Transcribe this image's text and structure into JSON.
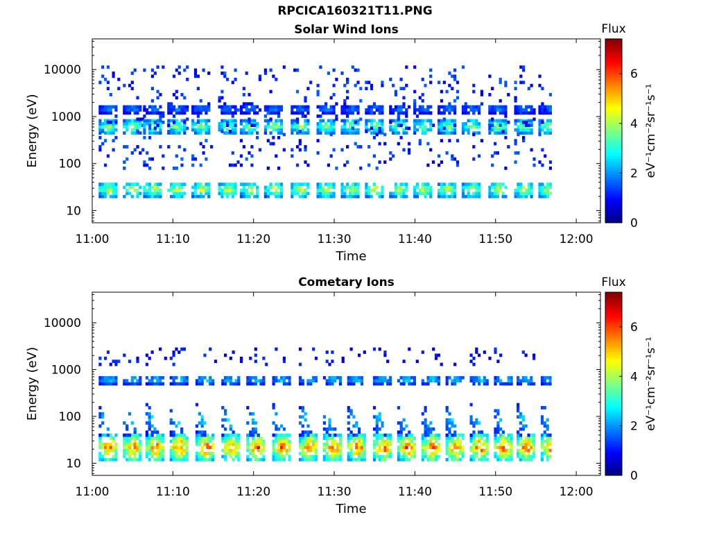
{
  "figure_title": "RPCICA160321T11.PNG",
  "chart_data": [
    {
      "type": "heatmap",
      "title": "Solar Wind Ions",
      "xlabel": "Time",
      "ylabel": "Energy (eV)",
      "x_ticks": [
        "11:00",
        "11:10",
        "11:20",
        "11:30",
        "11:40",
        "11:50",
        "12:00"
      ],
      "x_range_minutes": [
        0,
        63
      ],
      "y_scale": "log",
      "y_ticks": [
        "10",
        "100",
        "1000",
        "10000"
      ],
      "y_range": [
        5.5,
        45000
      ],
      "grid": false,
      "colorbar": {
        "label": "Flux",
        "units": "eV⁻¹cm⁻²sr⁻¹s⁻¹",
        "ticks": [
          "0",
          "2",
          "4",
          "6"
        ],
        "range": [
          0,
          7.4
        ],
        "colormap": "jet"
      },
      "pulse_times_minutes": [
        1.0,
        4.0,
        6.5,
        9.5,
        12.5,
        15.8,
        18.5,
        21.5,
        24.8,
        28.0,
        31.0,
        34.0,
        37.0,
        40.0,
        43.0,
        46.0,
        49.3,
        52.5,
        55.5
      ],
      "bands": [
        {
          "energy_low_eV": 20,
          "energy_high_eV": 40,
          "peak_flux": 5.0
        },
        {
          "energy_low_eV": 450,
          "energy_high_eV": 850,
          "peak_flux": 4.5
        },
        {
          "energy_low_eV": 1200,
          "energy_high_eV": 1800,
          "peak_flux": 2.3
        },
        {
          "energy_low_eV": 80,
          "energy_high_eV": 12000,
          "peak_flux": 1.2,
          "note": "sparse"
        }
      ]
    },
    {
      "type": "heatmap",
      "title": "Cometary Ions",
      "xlabel": "Time",
      "ylabel": "Energy (eV)",
      "x_ticks": [
        "11:00",
        "11:10",
        "11:20",
        "11:30",
        "11:40",
        "11:50",
        "12:00"
      ],
      "x_range_minutes": [
        0,
        63
      ],
      "y_scale": "log",
      "y_ticks": [
        "10",
        "100",
        "1000",
        "10000"
      ],
      "y_range": [
        5.5,
        45000
      ],
      "grid": false,
      "colorbar": {
        "label": "Flux",
        "units": "eV⁻¹cm⁻²sr⁻¹s⁻¹",
        "ticks": [
          "0",
          "2",
          "4",
          "6"
        ],
        "range": [
          0,
          7.4
        ],
        "colormap": "jet"
      },
      "pulse_times_minutes": [
        1.0,
        4.0,
        6.8,
        9.8,
        13.0,
        16.2,
        19.3,
        22.5,
        25.8,
        28.8,
        31.8,
        35.0,
        38.0,
        41.0,
        44.0,
        47.0,
        50.0,
        52.8,
        55.8
      ],
      "bands": [
        {
          "energy_low_eV": 12,
          "energy_high_eV": 40,
          "peak_flux": 6.7
        },
        {
          "energy_low_eV": 40,
          "energy_high_eV": 200,
          "peak_flux": 3.0,
          "note": "dispersed"
        },
        {
          "energy_low_eV": 500,
          "energy_high_eV": 750,
          "peak_flux": 3.0
        },
        {
          "energy_low_eV": 1300,
          "energy_high_eV": 2800,
          "peak_flux": 1.0,
          "note": "sparse"
        }
      ]
    }
  ]
}
